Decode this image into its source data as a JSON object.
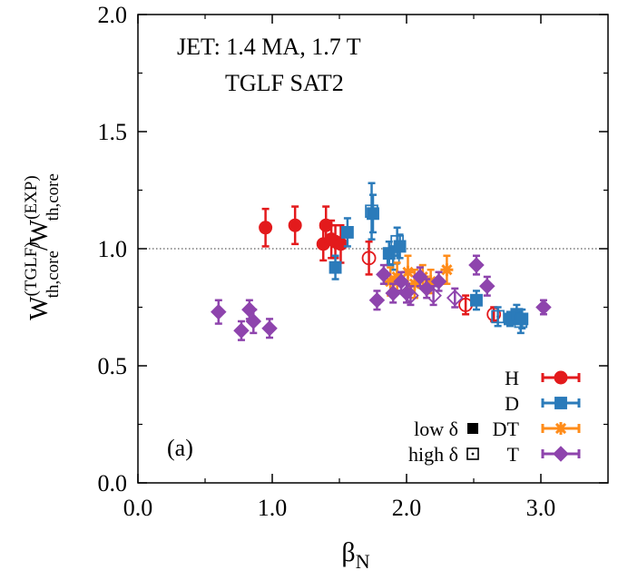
{
  "chart_data": {
    "type": "scatter",
    "xlim": [
      0,
      3.5
    ],
    "ylim": [
      0,
      2.0
    ],
    "xticks": [
      "0.0",
      "1.0",
      "2.0",
      "3.0"
    ],
    "xtick_values": [
      0,
      1,
      2,
      3
    ],
    "yticks": [
      "0.0",
      "0.5",
      "1.0",
      "1.5",
      "2.0"
    ],
    "ytick_values": [
      0,
      0.5,
      1,
      1.5,
      2
    ],
    "xlabel_main": "β",
    "xlabel_sub": "N",
    "ylabel": {
      "w1": "W",
      "sup1": "(TGLF)",
      "sub1": "th,core",
      "slash": "/",
      "w2": "W",
      "sup2": "(EXP)",
      "sub2": "th,core"
    },
    "reference_line": 1.0,
    "annotations": [
      "JET: 1.4 MA, 1.7 T",
      "TGLF SAT2"
    ],
    "panel_label": "(a)",
    "legend": {
      "position": "bottom-right",
      "low_delta_label": "low δ",
      "high_delta_label": "high δ"
    },
    "series": [
      {
        "name": "H",
        "color": "#e31a1c",
        "marker": "circle",
        "points": [
          {
            "x": 0.95,
            "y": 1.09,
            "err": 0.08,
            "open": false
          },
          {
            "x": 1.17,
            "y": 1.1,
            "err": 0.08,
            "open": false
          },
          {
            "x": 1.38,
            "y": 1.02,
            "err": 0.07,
            "open": false
          },
          {
            "x": 1.4,
            "y": 1.1,
            "err": 0.08,
            "open": false
          },
          {
            "x": 1.44,
            "y": 1.04,
            "err": 0.08,
            "open": false
          },
          {
            "x": 1.47,
            "y": 1.03,
            "err": 0.07,
            "open": false
          },
          {
            "x": 1.51,
            "y": 1.02,
            "err": 0.08,
            "open": false
          },
          {
            "x": 1.72,
            "y": 0.96,
            "err": 0.07,
            "open": true
          },
          {
            "x": 2.44,
            "y": 0.76,
            "err": 0.04,
            "open": true
          },
          {
            "x": 2.65,
            "y": 0.72,
            "err": 0.03,
            "open": true
          }
        ]
      },
      {
        "name": "D",
        "color": "#2b7bba",
        "marker": "square",
        "points": [
          {
            "x": 1.47,
            "y": 0.92,
            "err": 0.05,
            "open": false
          },
          {
            "x": 1.56,
            "y": 1.07,
            "err": 0.06,
            "open": false
          },
          {
            "x": 1.74,
            "y": 1.16,
            "err": 0.12,
            "open": true
          },
          {
            "x": 1.75,
            "y": 1.15,
            "err": 0.08,
            "open": false
          },
          {
            "x": 1.87,
            "y": 0.98,
            "err": 0.05,
            "open": false
          },
          {
            "x": 1.9,
            "y": 0.96,
            "err": 0.05,
            "open": true
          },
          {
            "x": 1.93,
            "y": 1.03,
            "err": 0.06,
            "open": true
          },
          {
            "x": 1.95,
            "y": 1.01,
            "err": 0.05,
            "open": false
          },
          {
            "x": 2.52,
            "y": 0.78,
            "err": 0.04,
            "open": false
          },
          {
            "x": 2.68,
            "y": 0.71,
            "err": 0.04,
            "open": true
          },
          {
            "x": 2.77,
            "y": 0.7,
            "err": 0.03,
            "open": false
          },
          {
            "x": 2.82,
            "y": 0.72,
            "err": 0.04,
            "open": false
          },
          {
            "x": 2.85,
            "y": 0.69,
            "err": 0.05,
            "open": true
          },
          {
            "x": 2.86,
            "y": 0.7,
            "err": 0.04,
            "open": false
          }
        ]
      },
      {
        "name": "DT",
        "color": "#ff8c1a",
        "marker": "star",
        "points": [
          {
            "x": 1.88,
            "y": 0.86,
            "err": 0.06,
            "open": false
          },
          {
            "x": 1.93,
            "y": 0.88,
            "err": 0.06,
            "open": false
          },
          {
            "x": 2.01,
            "y": 0.9,
            "err": 0.07,
            "open": false
          },
          {
            "x": 2.06,
            "y": 0.85,
            "err": 0.06,
            "open": false
          },
          {
            "x": 2.12,
            "y": 0.88,
            "err": 0.05,
            "open": false
          },
          {
            "x": 2.18,
            "y": 0.86,
            "err": 0.05,
            "open": false
          },
          {
            "x": 2.3,
            "y": 0.91,
            "err": 0.06,
            "open": false
          }
        ]
      },
      {
        "name": "T",
        "color": "#8e44ad",
        "marker": "diamond",
        "points": [
          {
            "x": 0.6,
            "y": 0.73,
            "err": 0.05,
            "open": false
          },
          {
            "x": 0.77,
            "y": 0.65,
            "err": 0.04,
            "open": false
          },
          {
            "x": 0.83,
            "y": 0.74,
            "err": 0.04,
            "open": false
          },
          {
            "x": 0.86,
            "y": 0.69,
            "err": 0.05,
            "open": false
          },
          {
            "x": 0.98,
            "y": 0.66,
            "err": 0.04,
            "open": false
          },
          {
            "x": 1.78,
            "y": 0.78,
            "err": 0.04,
            "open": false
          },
          {
            "x": 1.83,
            "y": 0.89,
            "err": 0.04,
            "open": false
          },
          {
            "x": 1.9,
            "y": 0.81,
            "err": 0.04,
            "open": false
          },
          {
            "x": 1.96,
            "y": 0.86,
            "err": 0.04,
            "open": false
          },
          {
            "x": 2.0,
            "y": 0.81,
            "err": 0.04,
            "open": false
          },
          {
            "x": 2.03,
            "y": 0.8,
            "err": 0.04,
            "open": true
          },
          {
            "x": 2.1,
            "y": 0.88,
            "err": 0.04,
            "open": false
          },
          {
            "x": 2.15,
            "y": 0.83,
            "err": 0.04,
            "open": false
          },
          {
            "x": 2.2,
            "y": 0.8,
            "err": 0.04,
            "open": true
          },
          {
            "x": 2.24,
            "y": 0.86,
            "err": 0.04,
            "open": false
          },
          {
            "x": 2.36,
            "y": 0.79,
            "err": 0.04,
            "open": true
          },
          {
            "x": 2.52,
            "y": 0.93,
            "err": 0.04,
            "open": false
          },
          {
            "x": 2.6,
            "y": 0.84,
            "err": 0.04,
            "open": false
          },
          {
            "x": 3.02,
            "y": 0.75,
            "err": 0.03,
            "open": false
          }
        ]
      }
    ]
  }
}
